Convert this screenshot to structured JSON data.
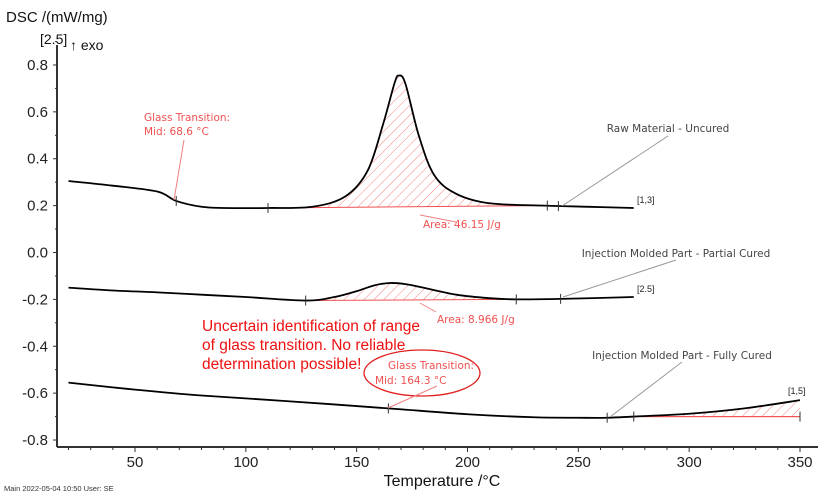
{
  "chart_data": {
    "type": "line",
    "title": "",
    "ylabel": "DSC /(mW/mg)",
    "ylabel_segment": "[2.5]",
    "ylabel_direction": "↑ exo",
    "xlabel": "Temperature /°C",
    "xlim": [
      15,
      352
    ],
    "ylim": [
      -0.83,
      0.88
    ],
    "xticks": [
      "50",
      "100",
      "150",
      "200",
      "250",
      "300",
      "350"
    ],
    "yticks": [
      "0.8",
      "0.6",
      "0.4",
      "0.2",
      "0.0",
      "-0.2",
      "-0.4",
      "-0.6",
      "-0.8"
    ],
    "series": [
      {
        "name": "Raw Material - Uncured",
        "segment": "[1,3]",
        "color": "#000000",
        "x": [
          20,
          40,
          60,
          68.6,
          80,
          90,
          110,
          130,
          145,
          155,
          162,
          167,
          169,
          172,
          178,
          185,
          195,
          210,
          235,
          255,
          275
        ],
        "y": [
          0.305,
          0.285,
          0.26,
          0.22,
          0.195,
          0.19,
          0.19,
          0.195,
          0.24,
          0.35,
          0.55,
          0.72,
          0.755,
          0.72,
          0.5,
          0.33,
          0.25,
          0.21,
          0.2,
          0.195,
          0.19
        ]
      },
      {
        "name": "Injection Molded Part - Partial Cured",
        "segment": "[2.5]",
        "color": "#000000",
        "x": [
          20,
          40,
          60,
          80,
          100,
          127,
          140,
          150,
          158,
          165,
          172,
          180,
          195,
          210,
          222,
          242,
          275
        ],
        "y": [
          -0.15,
          -0.162,
          -0.17,
          -0.18,
          -0.19,
          -0.205,
          -0.19,
          -0.165,
          -0.14,
          -0.13,
          -0.135,
          -0.15,
          -0.18,
          -0.195,
          -0.2,
          -0.198,
          -0.19
        ]
      },
      {
        "name": "Injection Molded Part - Fully Cured",
        "segment": "[1,5]",
        "color": "#000000",
        "x": [
          20,
          50,
          80,
          120,
          164.3,
          200,
          230,
          250,
          263,
          275,
          300,
          325,
          350
        ],
        "y": [
          -0.555,
          -0.585,
          -0.61,
          -0.635,
          -0.665,
          -0.69,
          -0.703,
          -0.705,
          -0.705,
          -0.7,
          -0.688,
          -0.665,
          -0.63
        ]
      }
    ],
    "annotations": [
      {
        "text1": "Glass Transition:",
        "text2": "Mid:  68.6 °C",
        "x": 68.6,
        "y": 0.22
      },
      {
        "text": "Area: 46.15 J/g",
        "range": [
          110,
          236
        ]
      },
      {
        "text": "Area: 8.966 J/g",
        "range": [
          127,
          222
        ]
      },
      {
        "text1": "Glass Transition:",
        "text2": "Mid:  164.3 °C",
        "x": 164.3,
        "y": -0.665
      },
      {
        "text": "Uncertain identification of range of glass transition. No reliable determination possible!",
        "lines": [
          "Uncertain identification of range",
          "of glass transition. No reliable",
          "determination possible!"
        ]
      }
    ]
  },
  "footer": {
    "text": "Main   2022-05-04 10:50   User: SE"
  },
  "colors": {
    "annotation": "#f05050",
    "warning": "#ee1111"
  }
}
